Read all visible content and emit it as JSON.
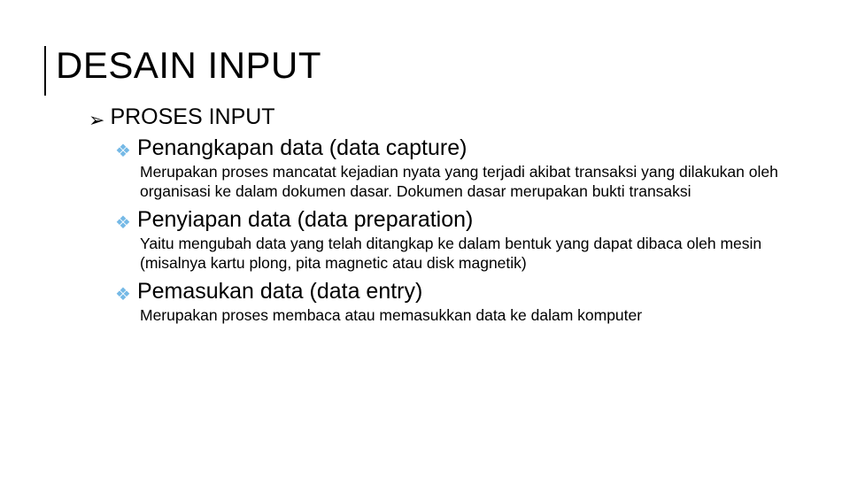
{
  "colors": {
    "background": "#ffffff",
    "text": "#000000",
    "title_bar": "#000000",
    "bullet_l1": "#000000",
    "bullet_l2": "#75b9e6"
  },
  "typography": {
    "title_fontsize": 42,
    "level1_fontsize": 25,
    "level2_fontsize": 25,
    "level3_fontsize": 17.5,
    "font_family": "Arial"
  },
  "title": "DESAIN INPUT",
  "bullets": {
    "l1_marker": "➢",
    "l2_marker": "❖"
  },
  "section": {
    "heading": "PROSES INPUT",
    "items": [
      {
        "title": "Penangkapan data (data capture)",
        "body": "Merupakan proses mancatat kejadian nyata yang terjadi akibat transaksi yang dilakukan oleh organisasi ke dalam dokumen dasar. Dokumen dasar merupakan bukti transaksi"
      },
      {
        "title": "Penyiapan data (data preparation)",
        "body": "Yaitu mengubah data yang telah ditangkap ke dalam bentuk yang dapat dibaca oleh mesin (misalnya kartu plong, pita magnetic atau disk magnetik)"
      },
      {
        "title": "Pemasukan data (data entry)",
        "body": "Merupakan proses membaca atau memasukkan data ke dalam komputer"
      }
    ]
  }
}
